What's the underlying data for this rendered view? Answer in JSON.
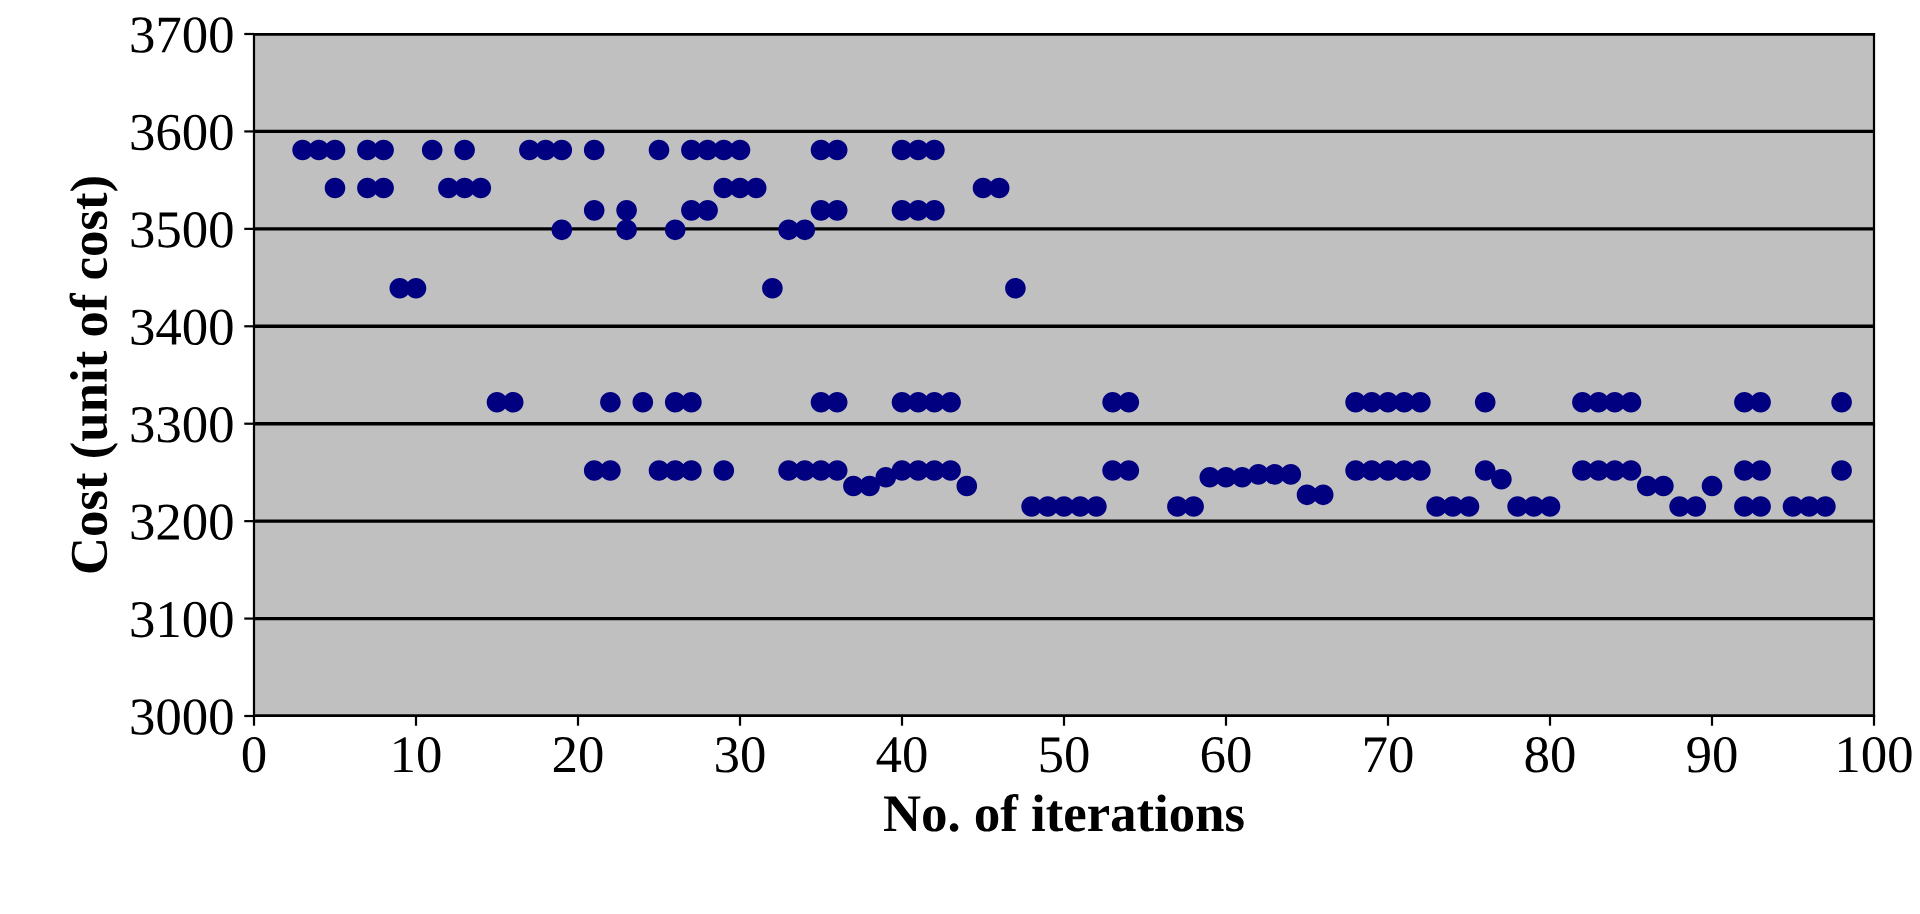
{
  "chart_data": {
    "type": "scatter",
    "xlabel": "No. of iterations",
    "ylabel": "Cost (unit of cost)",
    "xlim": [
      0,
      100
    ],
    "xticks": [
      0,
      10,
      20,
      30,
      40,
      50,
      60,
      70,
      80,
      90,
      100
    ],
    "ylim": [
      3000,
      3700
    ],
    "yticks": [
      3000,
      3100,
      3200,
      3300,
      3400,
      3500,
      3600,
      3700
    ],
    "grid": "y",
    "marker": "circle",
    "legend": false,
    "series": [
      {
        "color": "#000080",
        "x": [
          3,
          4,
          5,
          7,
          8,
          11,
          13,
          17,
          18,
          19,
          21,
          25,
          27,
          28,
          29,
          30,
          35,
          36,
          40,
          41,
          42,
          5,
          7,
          8,
          12,
          13,
          14,
          29,
          30,
          31,
          45,
          46,
          21,
          23,
          27,
          28,
          35,
          36,
          40,
          41,
          42,
          19,
          23,
          26,
          33,
          34,
          9,
          10,
          32,
          47,
          15,
          16,
          22,
          24,
          26,
          27,
          35,
          36,
          40,
          41,
          42,
          43,
          53,
          54,
          68,
          69,
          70,
          71,
          72,
          76,
          82,
          83,
          84,
          85,
          92,
          93,
          98,
          21,
          22,
          25,
          26,
          27,
          29,
          33,
          34,
          35,
          36,
          40,
          41,
          42,
          43,
          53,
          54,
          68,
          69,
          70,
          71,
          72,
          76,
          82,
          83,
          84,
          85,
          92,
          93,
          98,
          37,
          38,
          44,
          65,
          66,
          77,
          86,
          87,
          90,
          39,
          59,
          60,
          61,
          62,
          63,
          64,
          48,
          49,
          50,
          51,
          52,
          57,
          58,
          73,
          74,
          75,
          78,
          79,
          80,
          88,
          89,
          92,
          93,
          95,
          96,
          97
        ],
        "values": [
          3581,
          3581,
          3581,
          3581,
          3581,
          3581,
          3581,
          3581,
          3581,
          3581,
          3581,
          3581,
          3581,
          3581,
          3581,
          3581,
          3581,
          3581,
          3581,
          3581,
          3581,
          3542,
          3542,
          3542,
          3542,
          3542,
          3542,
          3542,
          3542,
          3542,
          3542,
          3542,
          3519,
          3519,
          3519,
          3519,
          3519,
          3519,
          3519,
          3519,
          3519,
          3499,
          3499,
          3499,
          3499,
          3499,
          3439,
          3439,
          3439,
          3439,
          3322,
          3322,
          3322,
          3322,
          3322,
          3322,
          3322,
          3322,
          3322,
          3322,
          3322,
          3322,
          3322,
          3322,
          3322,
          3322,
          3322,
          3322,
          3322,
          3322,
          3322,
          3322,
          3322,
          3322,
          3322,
          3322,
          3322,
          3252,
          3252,
          3252,
          3252,
          3252,
          3252,
          3252,
          3252,
          3252,
          3252,
          3252,
          3252,
          3252,
          3252,
          3252,
          3252,
          3252,
          3252,
          3252,
          3252,
          3252,
          3252,
          3252,
          3252,
          3252,
          3252,
          3252,
          3252,
          3252,
          3236,
          3236,
          3236,
          3227,
          3227,
          3243,
          3236,
          3236,
          3236,
          3245,
          3245,
          3245,
          3245,
          3248,
          3248,
          3248,
          3215,
          3215,
          3215,
          3215,
          3215,
          3215,
          3215,
          3215,
          3215,
          3215,
          3215,
          3215,
          3215,
          3215,
          3215,
          3215,
          3215,
          3215,
          3215,
          3215
        ]
      }
    ]
  }
}
